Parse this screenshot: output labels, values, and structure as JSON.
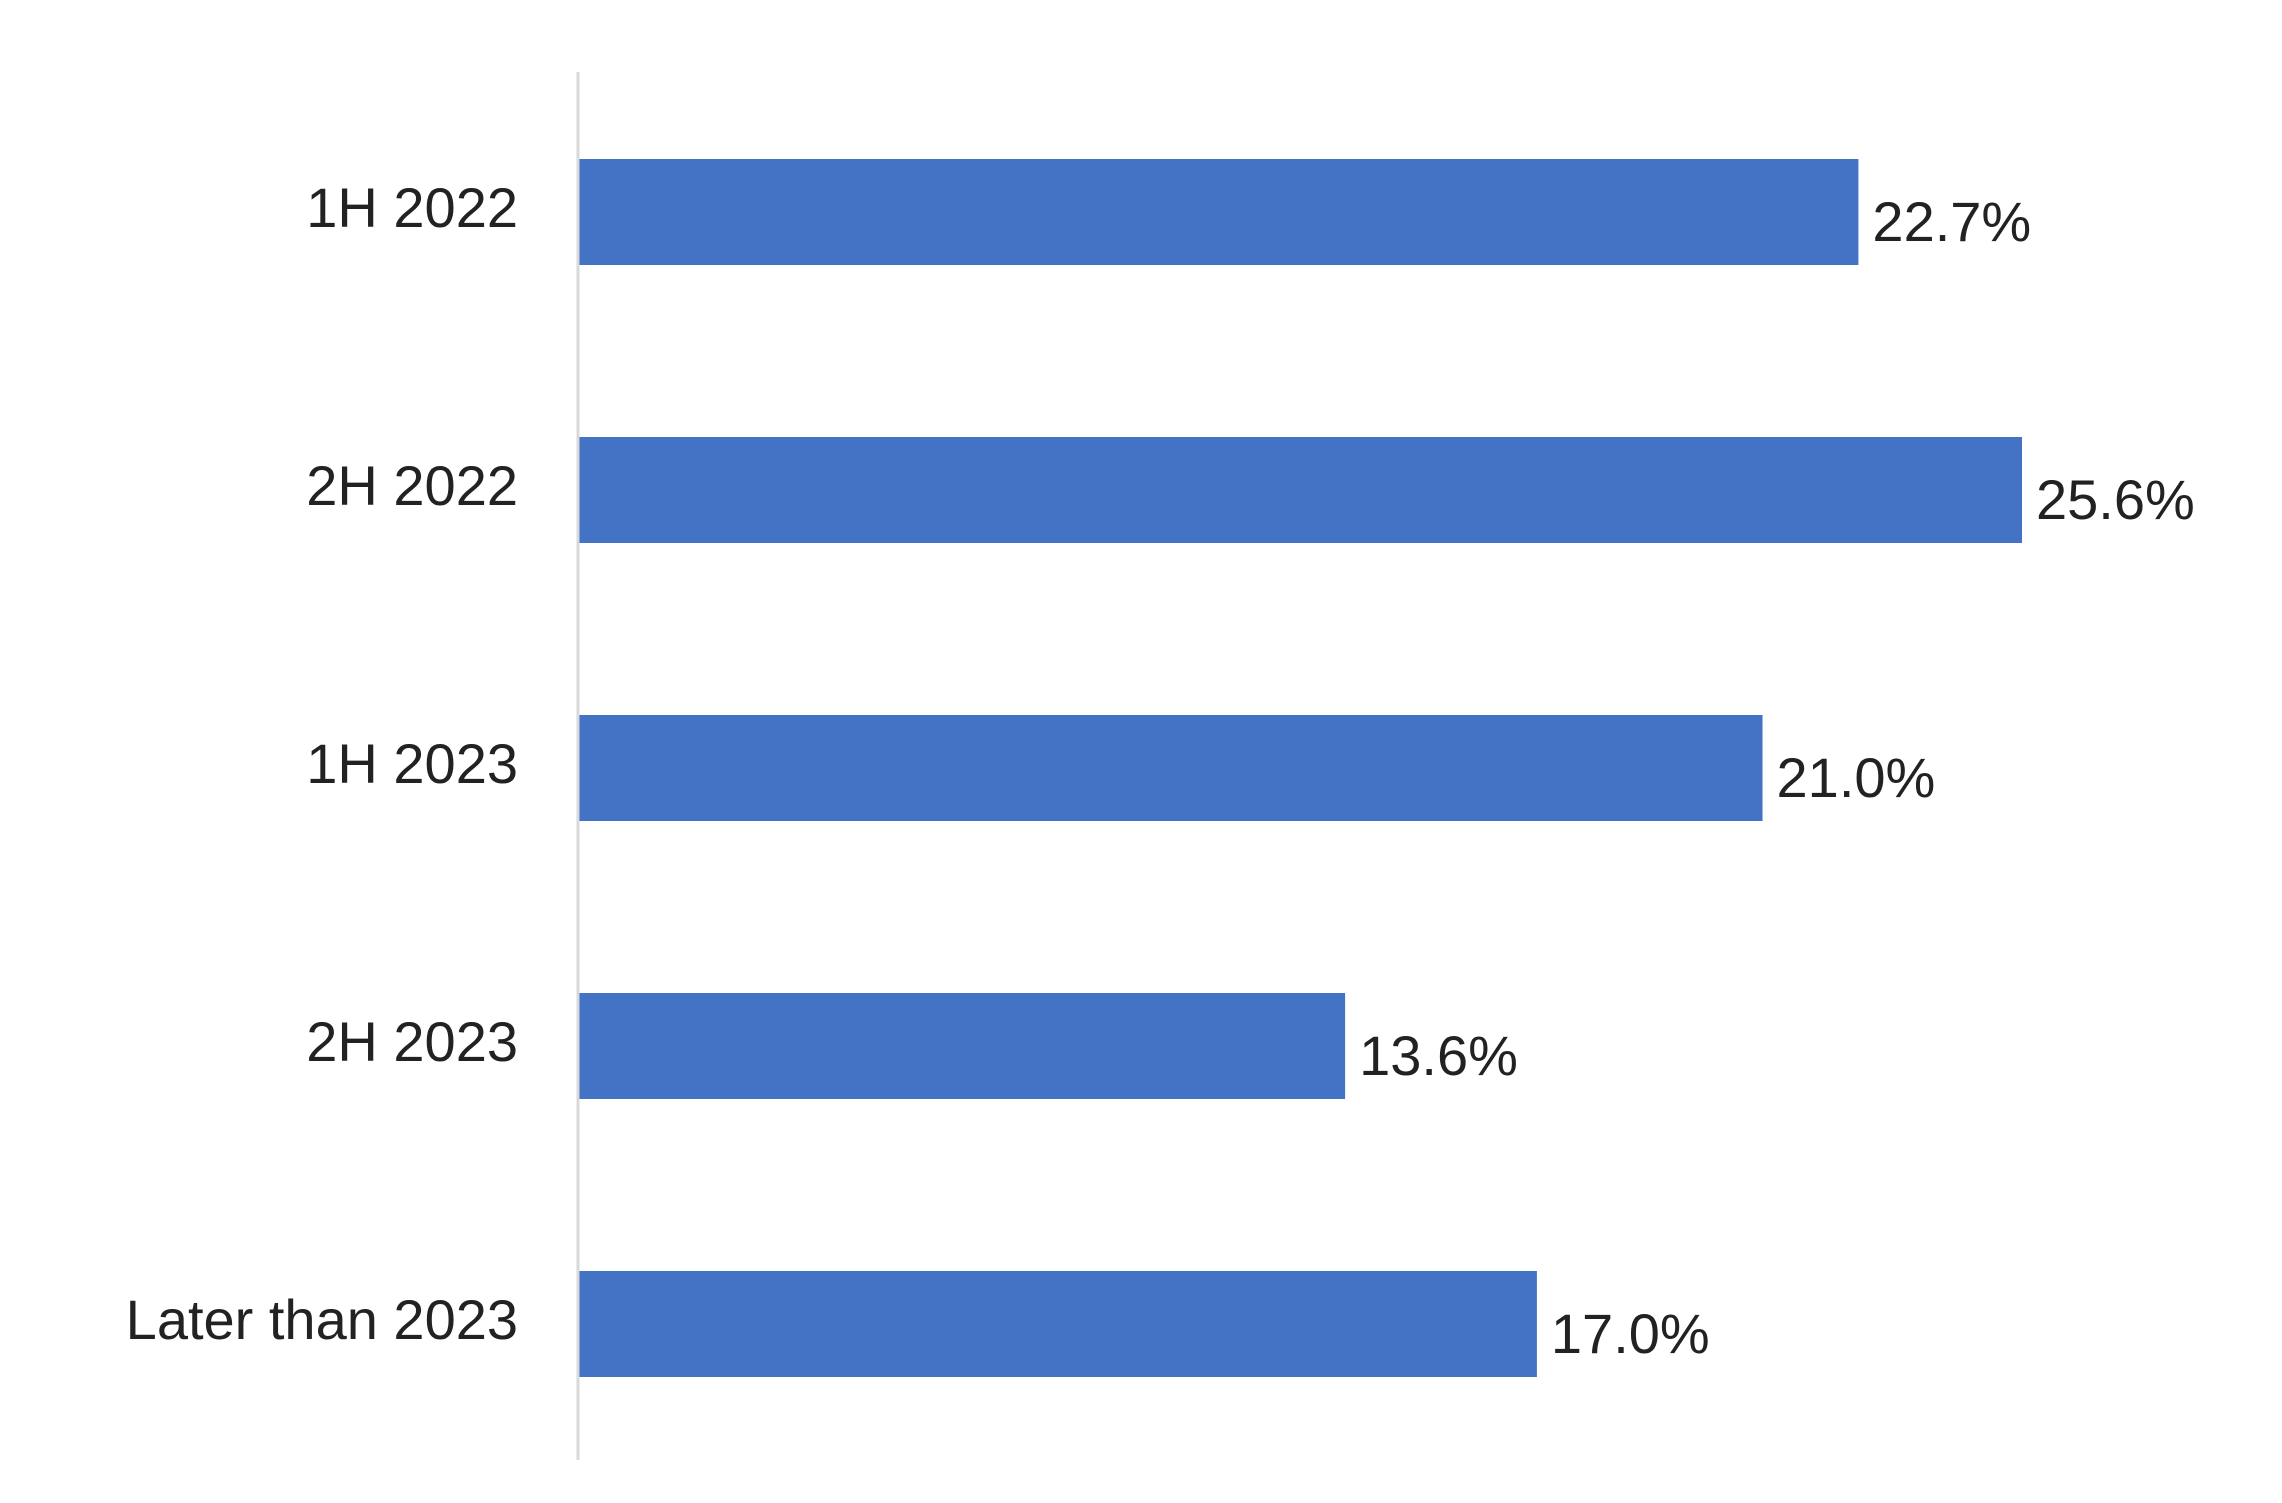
{
  "chart_data": {
    "type": "bar",
    "orientation": "horizontal",
    "categories": [
      "1H 2022",
      "2H 2022",
      "1H 2023",
      "2H 2023",
      "Later than 2023"
    ],
    "values": [
      22.7,
      25.6,
      21.0,
      13.6,
      17.0
    ],
    "value_labels": [
      "22.7%",
      "25.6%",
      "21.0%",
      "13.6%",
      "17.0%"
    ],
    "unit": "%",
    "title": "",
    "xlabel": "",
    "ylabel": "",
    "xlim": [
      0,
      25.6
    ],
    "grid": false,
    "legend": "none",
    "bar_color": "#4472C4",
    "axis_color": "#D9D9D9"
  }
}
